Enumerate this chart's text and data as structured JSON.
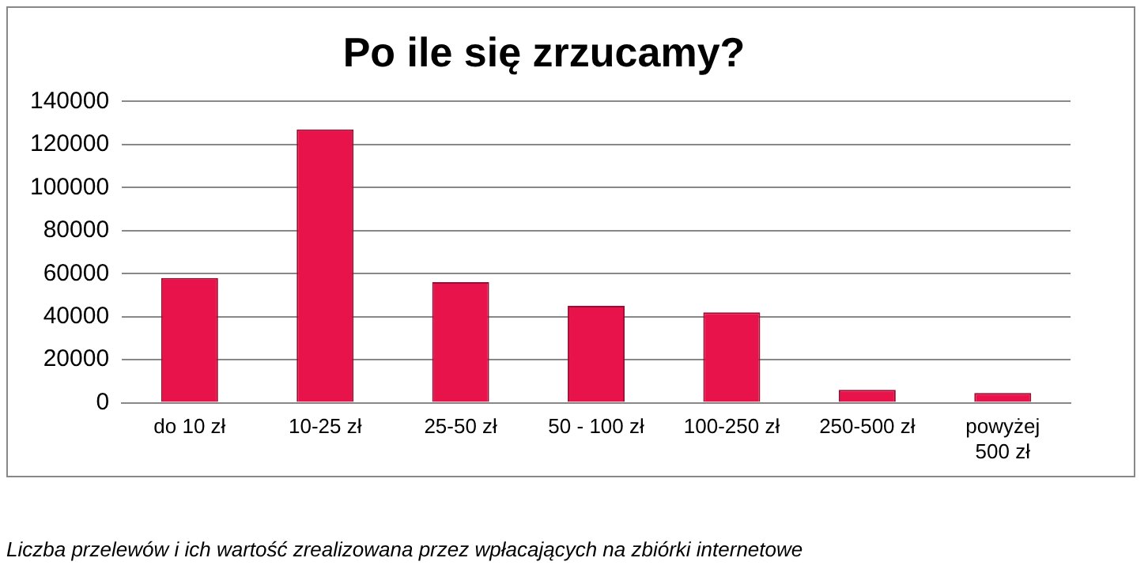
{
  "chart_data": {
    "type": "bar",
    "title": "Po ile się zrzucamy?",
    "categories": [
      "do 10 zł",
      "10-25 zł",
      "25-50 zł",
      "50 - 100 zł",
      "100-250 zł",
      "250-500 zł",
      "powyżej 500 zł"
    ],
    "values": [
      58000,
      127000,
      56000,
      45000,
      42000,
      6000,
      4500
    ],
    "color": "#e8134a",
    "ylim": [
      0,
      140000
    ],
    "yticks": [
      0,
      20000,
      40000,
      60000,
      80000,
      100000,
      120000,
      140000
    ],
    "grid": "y",
    "annotations": [
      "Liczba przelewów i ich wartość zrealizowana przez wpłacających na zbiórki internetowe"
    ]
  }
}
